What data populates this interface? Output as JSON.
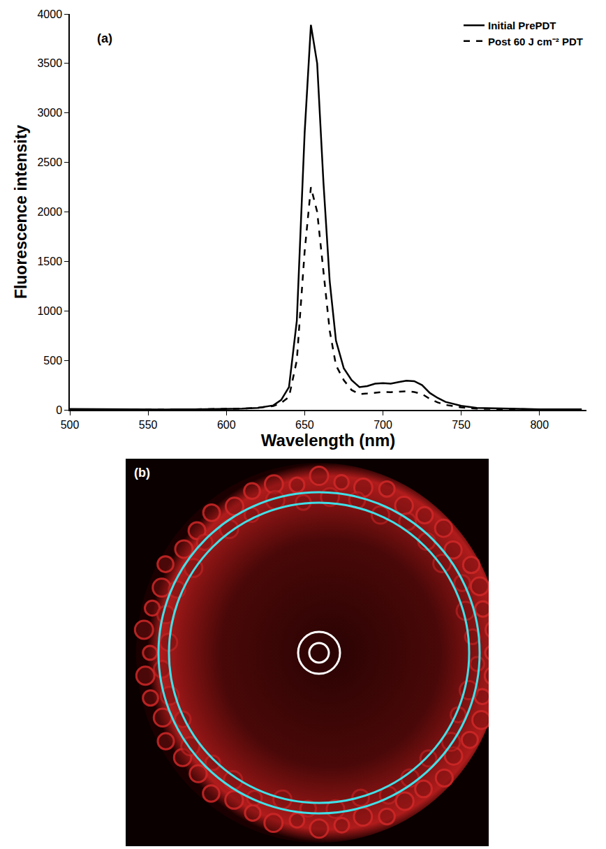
{
  "chart_data": {
    "type": "line",
    "label": "(a)",
    "x_label": "Wavelength (nm)",
    "y_label": "Fluorescence intensity",
    "x": [
      500,
      520,
      540,
      560,
      580,
      600,
      610,
      620,
      630,
      635,
      640,
      645,
      650,
      654,
      658,
      662,
      666,
      670,
      675,
      680,
      685,
      690,
      695,
      700,
      705,
      710,
      715,
      720,
      725,
      730,
      735,
      740,
      750,
      760,
      780,
      800,
      827
    ],
    "series": [
      {
        "name": "Initial PrePDT",
        "color": "#000000",
        "line_style": "solid",
        "values": [
          8,
          5,
          6,
          4,
          5,
          8,
          12,
          20,
          45,
          100,
          230,
          900,
          2800,
          3890,
          3500,
          2300,
          1300,
          700,
          420,
          300,
          230,
          240,
          265,
          270,
          265,
          280,
          295,
          290,
          250,
          170,
          120,
          80,
          40,
          20,
          10,
          5,
          5
        ]
      },
      {
        "name": "Post 60 J cm⁻² PDT",
        "color": "#000000",
        "line_style": "dash",
        "values": [
          4,
          3,
          5,
          4,
          6,
          8,
          12,
          20,
          38,
          70,
          130,
          500,
          1600,
          2250,
          2000,
          1400,
          800,
          450,
          300,
          200,
          160,
          165,
          175,
          180,
          178,
          185,
          188,
          180,
          160,
          110,
          75,
          50,
          25,
          12,
          6,
          4,
          3
        ]
      }
    ],
    "xlim": [
      500,
      830
    ],
    "xticks": [
      500,
      550,
      600,
      650,
      700,
      750,
      800
    ],
    "ylim": [
      0,
      4000
    ],
    "yticks": [
      0,
      500,
      1000,
      1500,
      2000,
      2500,
      3000,
      3500,
      4000
    ],
    "grid": false,
    "legend": "top-right"
  },
  "image_panel": {
    "label": "(b)"
  }
}
